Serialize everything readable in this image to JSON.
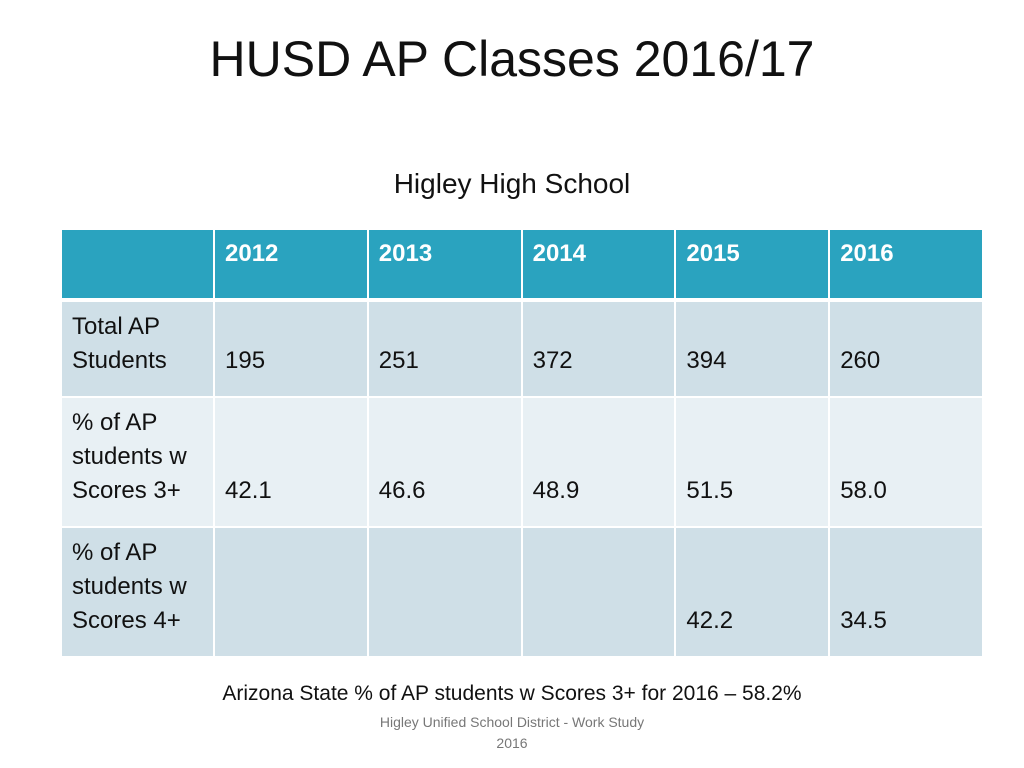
{
  "slide": {
    "title": "HUSD AP Classes 2016/17",
    "subtitle": "Higley High School"
  },
  "table": {
    "header": [
      "",
      "2012",
      "2013",
      "2014",
      "2015",
      "2016"
    ],
    "rows": [
      {
        "label": "Total AP Students",
        "values": [
          "195",
          "251",
          "372",
          "394",
          "260"
        ]
      },
      {
        "label": "% of AP students w Scores 3+",
        "values": [
          "42.1",
          "46.6",
          "48.9",
          "51.5",
          "58.0"
        ]
      },
      {
        "label": "% of AP students w Scores 4+",
        "values": [
          "",
          "",
          "",
          "42.2",
          "34.5"
        ]
      }
    ]
  },
  "state_note": "Arizona State % of AP students w Scores 3+ for 2016 – 58.2%",
  "footer": {
    "line1": "Higley Unified School District  - Work Study",
    "line2": "2016"
  },
  "colors": {
    "header_bg": "#2aa3bf",
    "row_dark": "#cfdfe7",
    "row_light": "#e8f0f4"
  }
}
